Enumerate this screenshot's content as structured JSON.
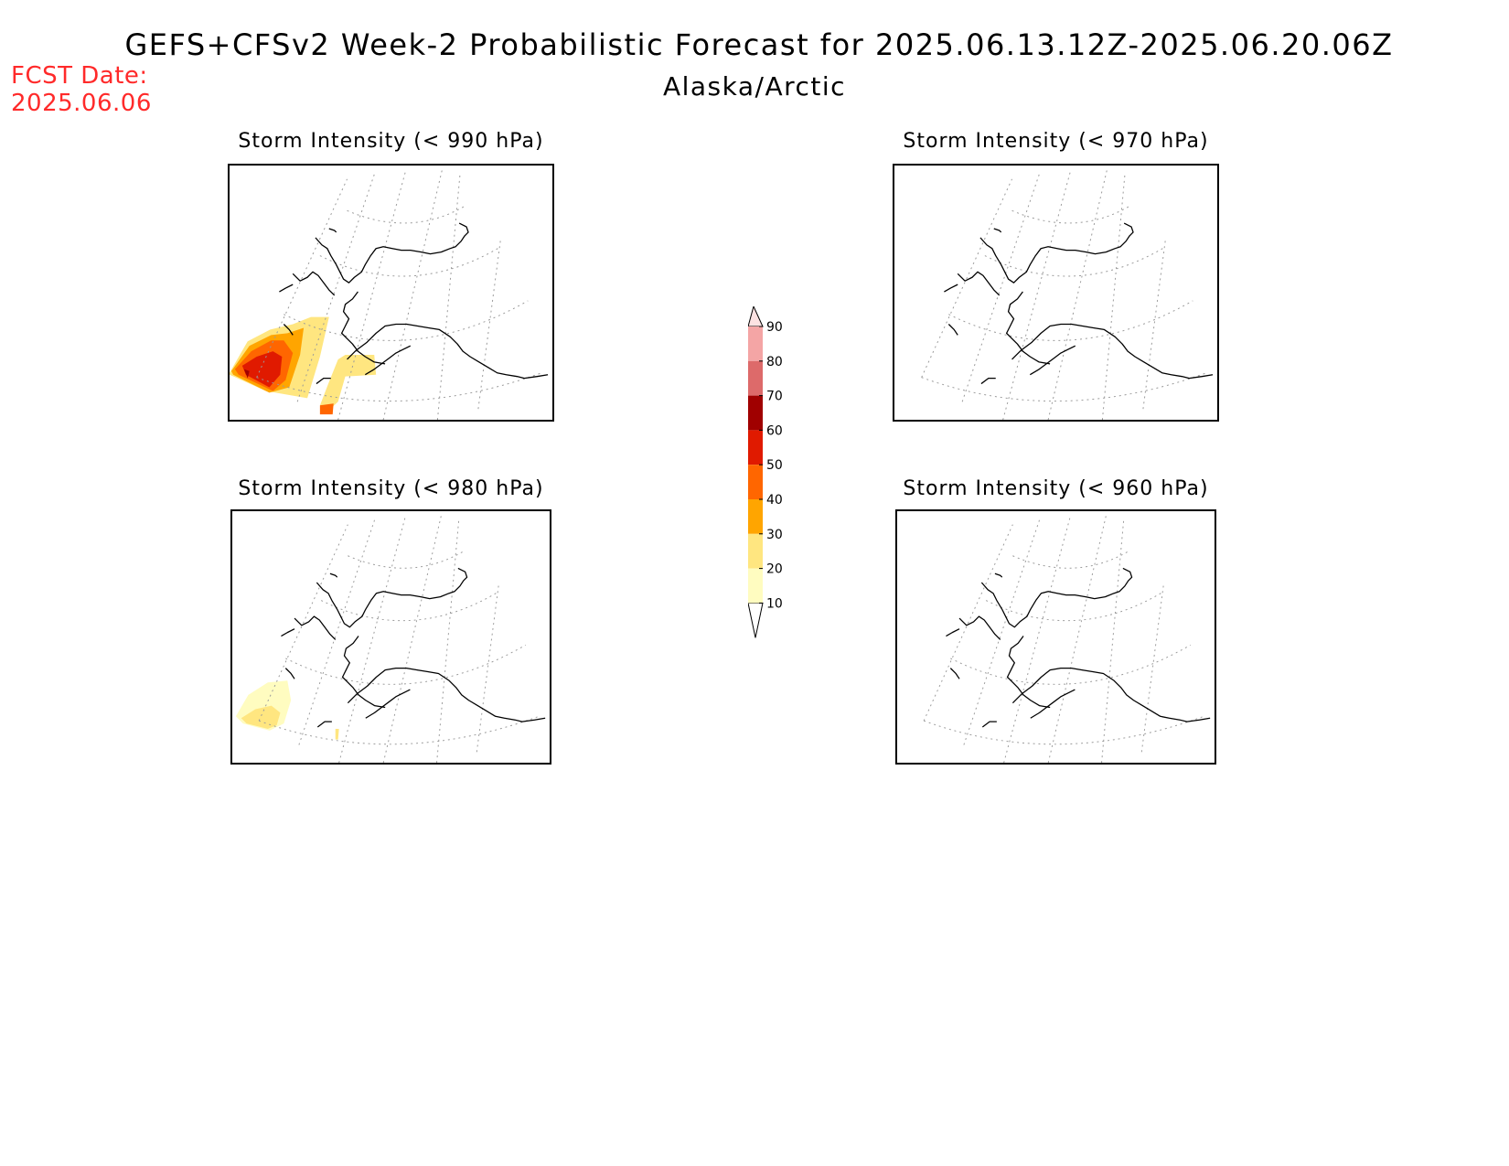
{
  "title": "GEFS+CFSv2 Week-2 Probabilistic Forecast for 2025.06.13.12Z-2025.06.20.06Z",
  "subtitle": "Alaska/Arctic",
  "forecast_date": {
    "label": "FCST Date:",
    "value": "2025.06.06"
  },
  "panels": [
    {
      "title": "Storm Intensity (< 990 hPa)",
      "probability": "high"
    },
    {
      "title": "Storm Intensity (< 970 hPa)",
      "probability": "none"
    },
    {
      "title": "Storm Intensity (< 980 hPa)",
      "probability": "low"
    },
    {
      "title": "Storm Intensity (< 960 hPa)",
      "probability": "none"
    }
  ],
  "legend": {
    "levels": [
      "10",
      "20",
      "30",
      "40",
      "50",
      "60",
      "70",
      "80",
      "90"
    ],
    "colors": [
      "#fffcc0",
      "#ffe680",
      "#ffa500",
      "#ff6600",
      "#e01a00",
      "#a00000",
      "#dd6a6a",
      "#f4a5a5",
      "#fde2e2"
    ]
  },
  "colors": {
    "fcst_date": "#ff2a2a"
  }
}
